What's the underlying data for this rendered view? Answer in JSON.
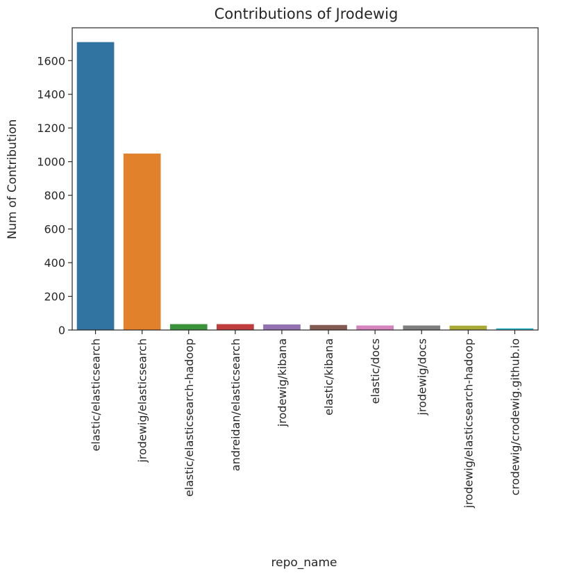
{
  "chart_data": {
    "type": "bar",
    "title": "Contributions of Jrodewig",
    "xlabel": "repo_name",
    "ylabel": "Num of Contribution",
    "categories": [
      "elastic/elasticsearch",
      "jrodewig/elasticsearch",
      "elastic/elasticsearch-hadoop",
      "andreidan/elasticsearch",
      "jrodewig/kibana",
      "elastic/kibana",
      "elastic/docs",
      "jrodewig/docs",
      "jrodewig/elasticsearch-hadoop",
      "crodewig/crodewig.github.io"
    ],
    "values": [
      1710,
      1048,
      35,
      35,
      33,
      30,
      27,
      27,
      26,
      10
    ],
    "colors": [
      "#3274a1",
      "#e1812c",
      "#3a923a",
      "#c03d3e",
      "#9372b2",
      "#845b53",
      "#d684bd",
      "#7f7f7f",
      "#a9aa35",
      "#2eb4c6"
    ],
    "yticks": [
      0,
      200,
      400,
      600,
      800,
      1000,
      1200,
      1400,
      1600
    ],
    "ylim": [
      0,
      1795
    ],
    "grid": false,
    "legend": false
  }
}
